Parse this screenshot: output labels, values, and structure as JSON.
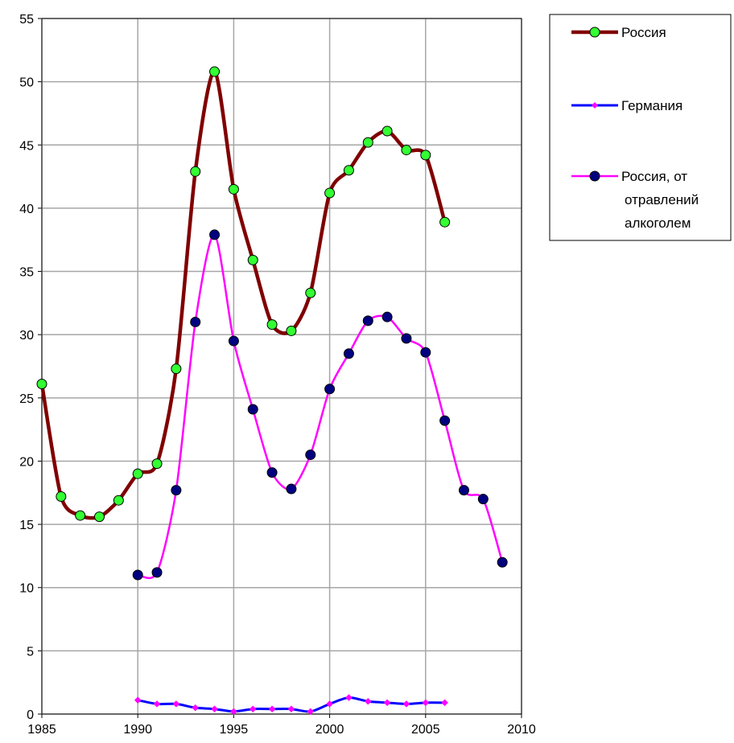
{
  "chart_data": {
    "type": "line",
    "title": "",
    "xlabel": "",
    "ylabel": "",
    "xlim": [
      1985,
      2010
    ],
    "ylim": [
      0,
      55
    ],
    "xticks": [
      1985,
      1990,
      1995,
      2000,
      2005,
      2010
    ],
    "yticks": [
      0,
      5,
      10,
      15,
      20,
      25,
      30,
      35,
      40,
      45,
      50,
      55
    ],
    "grid": true,
    "smooth": true,
    "legend_position": "top-right, outside plot",
    "series": [
      {
        "name": "Россия",
        "line_color": "#800000",
        "marker_color": "#33ff33",
        "marker": "circle",
        "x": [
          1985,
          1986,
          1987,
          1988,
          1989,
          1990,
          1991,
          1992,
          1993,
          1994,
          1995,
          1996,
          1997,
          1998,
          1999,
          2000,
          2001,
          2002,
          2003,
          2004,
          2005,
          2006
        ],
        "y": [
          26.1,
          17.2,
          15.7,
          15.6,
          16.9,
          19.0,
          19.8,
          27.3,
          42.9,
          50.8,
          41.5,
          35.9,
          30.8,
          30.3,
          33.3,
          41.2,
          43.0,
          45.2,
          46.1,
          44.6,
          44.2,
          38.9
        ]
      },
      {
        "name": "Германия",
        "line_color": "#0000ff",
        "marker_color": "#ff00ff",
        "marker": "diamond",
        "x": [
          1990,
          1991,
          1992,
          1993,
          1994,
          1995,
          1996,
          1997,
          1998,
          1999,
          2000,
          2001,
          2002,
          2003,
          2004,
          2005,
          2006
        ],
        "y": [
          1.1,
          0.8,
          0.8,
          0.5,
          0.4,
          0.2,
          0.4,
          0.4,
          0.4,
          0.2,
          0.8,
          1.3,
          1.0,
          0.9,
          0.8,
          0.9,
          0.9
        ]
      },
      {
        "name": "Россия, от отравлений алкоголем",
        "name_lines": [
          "Россия, от",
          "отравлений",
          "алкоголем"
        ],
        "line_color": "#ff00ff",
        "marker_color": "#000080",
        "marker": "circle",
        "x": [
          1990,
          1991,
          1992,
          1993,
          1994,
          1995,
          1996,
          1997,
          1998,
          1999,
          2000,
          2001,
          2002,
          2003,
          2004,
          2005,
          2006,
          2007,
          2008,
          2009
        ],
        "y": [
          11.0,
          11.2,
          17.7,
          31.0,
          37.9,
          29.5,
          24.1,
          19.1,
          17.8,
          20.5,
          25.7,
          28.5,
          31.1,
          31.4,
          29.7,
          28.6,
          23.2,
          17.7,
          17.0,
          12.0
        ]
      }
    ]
  }
}
